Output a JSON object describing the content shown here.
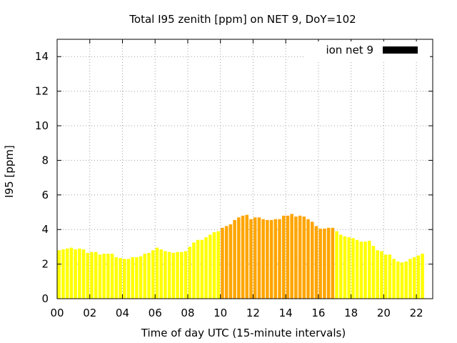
{
  "chart_data": {
    "type": "bar",
    "title": "Total I95 zenith [ppm] on NET 9, DoY=102",
    "xlabel": "Time of day UTC (15-minute intervals)",
    "ylabel": "I95 [ppm]",
    "xlim": [
      0,
      23
    ],
    "ylim": [
      0,
      15
    ],
    "x_tick_values": [
      0,
      2,
      4,
      6,
      8,
      10,
      12,
      14,
      16,
      18,
      20,
      22
    ],
    "x_tick_labels": [
      "00",
      "02",
      "04",
      "06",
      "08",
      "10",
      "12",
      "14",
      "16",
      "18",
      "20",
      "22"
    ],
    "y_tick_values": [
      0,
      2,
      4,
      6,
      8,
      10,
      12,
      14
    ],
    "y_tick_labels": [
      "0",
      "2",
      "4",
      "6",
      "8",
      "10",
      "12",
      "14"
    ],
    "grid": true,
    "legend": {
      "placement": "top-right",
      "label": "ion net 9",
      "color": "#000000"
    },
    "colors": {
      "normal": "#ffff00",
      "elevated": "#ffa500"
    },
    "interval_hours": 0.25,
    "series": [
      {
        "name": "ion net 9",
        "x_start_hours": 0,
        "values": [
          2.8,
          2.85,
          2.9,
          2.95,
          2.85,
          2.9,
          2.85,
          2.65,
          2.7,
          2.7,
          2.55,
          2.6,
          2.6,
          2.6,
          2.4,
          2.35,
          2.3,
          2.3,
          2.4,
          2.4,
          2.45,
          2.6,
          2.65,
          2.8,
          2.95,
          2.85,
          2.75,
          2.7,
          2.65,
          2.7,
          2.7,
          2.75,
          3.0,
          3.25,
          3.4,
          3.4,
          3.55,
          3.7,
          3.85,
          3.9,
          4.1,
          4.2,
          4.3,
          4.55,
          4.7,
          4.8,
          4.85,
          4.6,
          4.7,
          4.7,
          4.6,
          4.55,
          4.55,
          4.6,
          4.6,
          4.8,
          4.8,
          4.9,
          4.75,
          4.8,
          4.75,
          4.6,
          4.45,
          4.2,
          4.05,
          4.05,
          4.1,
          4.1,
          3.9,
          3.7,
          3.6,
          3.55,
          3.5,
          3.4,
          3.3,
          3.3,
          3.35,
          3.05,
          2.8,
          2.75,
          2.55,
          2.55,
          2.3,
          2.15,
          2.1,
          2.15,
          2.3,
          2.4,
          2.5,
          2.6
        ],
        "colors": [
          "#ffff00",
          "#ffff00",
          "#ffff00",
          "#ffff00",
          "#ffff00",
          "#ffff00",
          "#ffff00",
          "#ffff00",
          "#ffff00",
          "#ffff00",
          "#ffff00",
          "#ffff00",
          "#ffff00",
          "#ffff00",
          "#ffff00",
          "#ffff00",
          "#ffff00",
          "#ffff00",
          "#ffff00",
          "#ffff00",
          "#ffff00",
          "#ffff00",
          "#ffff00",
          "#ffff00",
          "#ffff00",
          "#ffff00",
          "#ffff00",
          "#ffff00",
          "#ffff00",
          "#ffff00",
          "#ffff00",
          "#ffff00",
          "#ffff00",
          "#ffff00",
          "#ffff00",
          "#ffff00",
          "#ffff00",
          "#ffff00",
          "#ffff00",
          "#ffff00",
          "#ffa500",
          "#ffa500",
          "#ffa500",
          "#ffa500",
          "#ffa500",
          "#ffa500",
          "#ffa500",
          "#ffa500",
          "#ffa500",
          "#ffa500",
          "#ffa500",
          "#ffa500",
          "#ffa500",
          "#ffa500",
          "#ffa500",
          "#ffa500",
          "#ffa500",
          "#ffa500",
          "#ffa500",
          "#ffa500",
          "#ffa500",
          "#ffa500",
          "#ffa500",
          "#ffa500",
          "#ffa500",
          "#ffa500",
          "#ffa500",
          "#ffa500",
          "#ffff00",
          "#ffff00",
          "#ffff00",
          "#ffff00",
          "#ffff00",
          "#ffff00",
          "#ffff00",
          "#ffff00",
          "#ffff00",
          "#ffff00",
          "#ffff00",
          "#ffff00",
          "#ffff00",
          "#ffff00",
          "#ffff00",
          "#ffff00",
          "#ffff00",
          "#ffff00",
          "#ffff00",
          "#ffff00",
          "#ffff00",
          "#ffff00"
        ]
      }
    ]
  }
}
